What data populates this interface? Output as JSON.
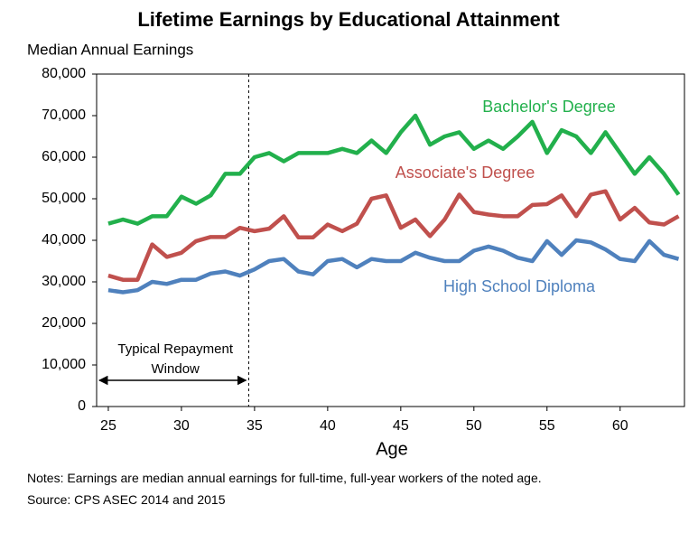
{
  "chart_data": {
    "type": "line",
    "title": "Lifetime Earnings by Educational Attainment",
    "y_axis_label": "Median Annual Earnings",
    "x_axis_label": "Age",
    "x": [
      25,
      26,
      27,
      28,
      29,
      30,
      31,
      32,
      33,
      34,
      35,
      36,
      37,
      38,
      39,
      40,
      41,
      42,
      43,
      44,
      45,
      46,
      47,
      48,
      49,
      50,
      51,
      52,
      53,
      54,
      55,
      56,
      57,
      58,
      59,
      60,
      61,
      62,
      63,
      64
    ],
    "series": [
      {
        "name": "Bachelor's Degree",
        "color": "#22b04c",
        "values": [
          44000,
          45000,
          44000,
          45800,
          45800,
          50500,
          48800,
          50800,
          56000,
          56000,
          60000,
          61000,
          59000,
          61000,
          61000,
          61000,
          62000,
          61000,
          64000,
          61000,
          66000,
          70000,
          63000,
          65000,
          66000,
          62000,
          64000,
          62000,
          65000,
          68500,
          61000,
          66500,
          65000,
          61000,
          66000,
          61000,
          56000,
          60000,
          56000,
          51000
        ]
      },
      {
        "name": "Associate's Degree",
        "color": "#c0504d",
        "values": [
          31500,
          30500,
          30500,
          39000,
          36000,
          37000,
          39800,
          40800,
          40800,
          43000,
          42200,
          42800,
          45800,
          40700,
          40700,
          43800,
          42200,
          44000,
          50000,
          50800,
          43000,
          45000,
          41000,
          45000,
          51000,
          46800,
          46200,
          45800,
          45800,
          48500,
          48700,
          50800,
          45800,
          51000,
          51800,
          45000,
          47800,
          44300,
          43800,
          45800
        ]
      },
      {
        "name": "High School Diploma",
        "color": "#4f81bd",
        "values": [
          28000,
          27500,
          28000,
          30000,
          29500,
          30500,
          30500,
          32000,
          32500,
          31500,
          33000,
          35000,
          35500,
          32500,
          31800,
          35000,
          35500,
          33500,
          35500,
          35000,
          35000,
          37000,
          35800,
          35000,
          35000,
          37500,
          38500,
          37500,
          35800,
          35000,
          39800,
          36500,
          40000,
          39500,
          37800,
          35500,
          35000,
          39800,
          36500,
          35500
        ]
      }
    ],
    "xlim": [
      24.2,
      64.4
    ],
    "xticks": [
      25,
      30,
      35,
      40,
      45,
      50,
      55,
      60
    ],
    "ylim": [
      0,
      80000
    ],
    "yticks": [
      0,
      {
        "value": 10000,
        "label": "10,000"
      },
      {
        "value": 20000,
        "label": "20,000"
      },
      {
        "value": 30000,
        "label": "30,000"
      },
      {
        "value": 40000,
        "label": "40,000"
      },
      {
        "value": 50000,
        "label": "50,000"
      },
      {
        "value": 60000,
        "label": "60,000"
      },
      {
        "value": 70000,
        "label": "70,000"
      },
      {
        "value": 80000,
        "label": "80,000"
      }
    ],
    "annotation": {
      "lines": [
        "Typical Repayment",
        "Window"
      ],
      "x_end": 34.6
    },
    "notes": "Notes: Earnings are median annual earnings for full-time, full-year workers of the noted age.",
    "source": "Source: CPS ASEC 2014 and 2015"
  }
}
